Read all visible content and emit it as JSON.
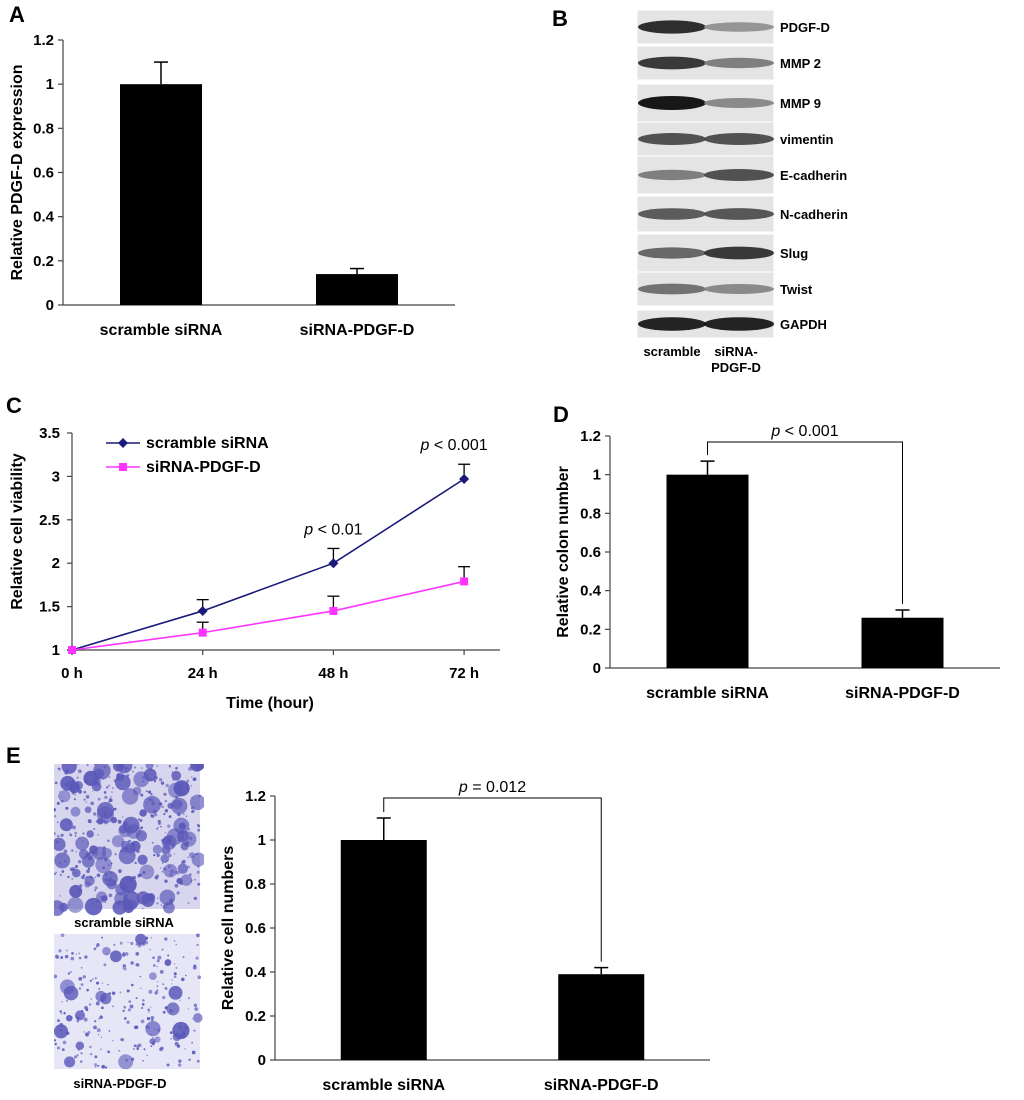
{
  "panel_letters": {
    "a": "A",
    "b": "B",
    "c": "C",
    "d": "D",
    "e": "E"
  },
  "colors": {
    "bar": "#000000",
    "series1": "#1a1a7a",
    "series2": "#ff33ff",
    "blot_bg": "#e4e4e4",
    "stain": "#5a58b8"
  },
  "blot": {
    "rows": [
      "PDGF-D",
      "MMP 2",
      "MMP 9",
      "vimentin",
      "E-cadherin",
      "N-cadherin",
      "Slug",
      "Twist",
      "GAPDH"
    ],
    "intensity": [
      [
        0.9,
        0.45
      ],
      [
        0.85,
        0.55
      ],
      [
        1.0,
        0.5
      ],
      [
        0.75,
        0.75
      ],
      [
        0.55,
        0.75
      ],
      [
        0.7,
        0.72
      ],
      [
        0.65,
        0.85
      ],
      [
        0.6,
        0.5
      ],
      [
        0.95,
        0.95
      ]
    ],
    "lanes": [
      "scramble",
      "siRNA-\nPDGF-D"
    ]
  },
  "images": {
    "top_caption": "scramble siRNA",
    "bottom_caption": "siRNA-PDGF-D"
  },
  "chart_data": [
    {
      "panel": "A",
      "type": "bar",
      "categories": [
        "scramble siRNA",
        "siRNA-PDGF-D"
      ],
      "values": [
        1.0,
        0.14
      ],
      "errors": [
        0.1,
        0.025
      ],
      "ylabel": "Relative PDGF-D expression",
      "ylim": [
        0,
        1.2
      ],
      "yticks": [
        "0",
        "0.2",
        "0.4",
        "0.6",
        "0.8",
        "1",
        "1.2"
      ]
    },
    {
      "panel": "C",
      "type": "line",
      "x": [
        "0 h",
        "24 h",
        "48 h",
        "72 h"
      ],
      "series": [
        {
          "name": "scramble siRNA",
          "values": [
            1.0,
            1.45,
            2.0,
            2.97
          ],
          "errors": [
            0,
            0.13,
            0.17,
            0.17
          ]
        },
        {
          "name": "siRNA-PDGF-D",
          "values": [
            1.0,
            1.2,
            1.45,
            1.79
          ],
          "errors": [
            0,
            0.12,
            0.17,
            0.17
          ]
        }
      ],
      "xlabel": "Time (hour)",
      "ylabel": "Relative cell viability",
      "ylim": [
        1,
        3.5
      ],
      "yticks": [
        "1",
        "1.5",
        "2",
        "2.5",
        "3",
        "3.5"
      ],
      "annotations": [
        {
          "x": "48 h",
          "p": "p",
          "text": " < 0.01"
        },
        {
          "x": "72 h",
          "p": "p",
          "text": " < 0.001"
        }
      ],
      "legend": "top-left"
    },
    {
      "panel": "D",
      "type": "bar",
      "categories": [
        "scramble siRNA",
        "siRNA-PDGF-D"
      ],
      "values": [
        1.0,
        0.26
      ],
      "errors": [
        0.07,
        0.04
      ],
      "ylabel": "Relative colon number",
      "ylim": [
        0,
        1.2
      ],
      "yticks": [
        "0",
        "0.2",
        "0.4",
        "0.6",
        "0.8",
        "1",
        "1.2"
      ],
      "significance": {
        "p": "p",
        "text": " < 0.001"
      }
    },
    {
      "panel": "E",
      "type": "bar",
      "categories": [
        "scramble siRNA",
        "siRNA-PDGF-D"
      ],
      "values": [
        1.0,
        0.39
      ],
      "errors": [
        0.1,
        0.03
      ],
      "ylabel": "Relative cell numbers",
      "ylim": [
        0,
        1.2
      ],
      "yticks": [
        "0",
        "0.2",
        "0.4",
        "0.6",
        "0.8",
        "1",
        "1.2"
      ],
      "significance": {
        "p": "p",
        "text": " = 0.012"
      }
    }
  ]
}
